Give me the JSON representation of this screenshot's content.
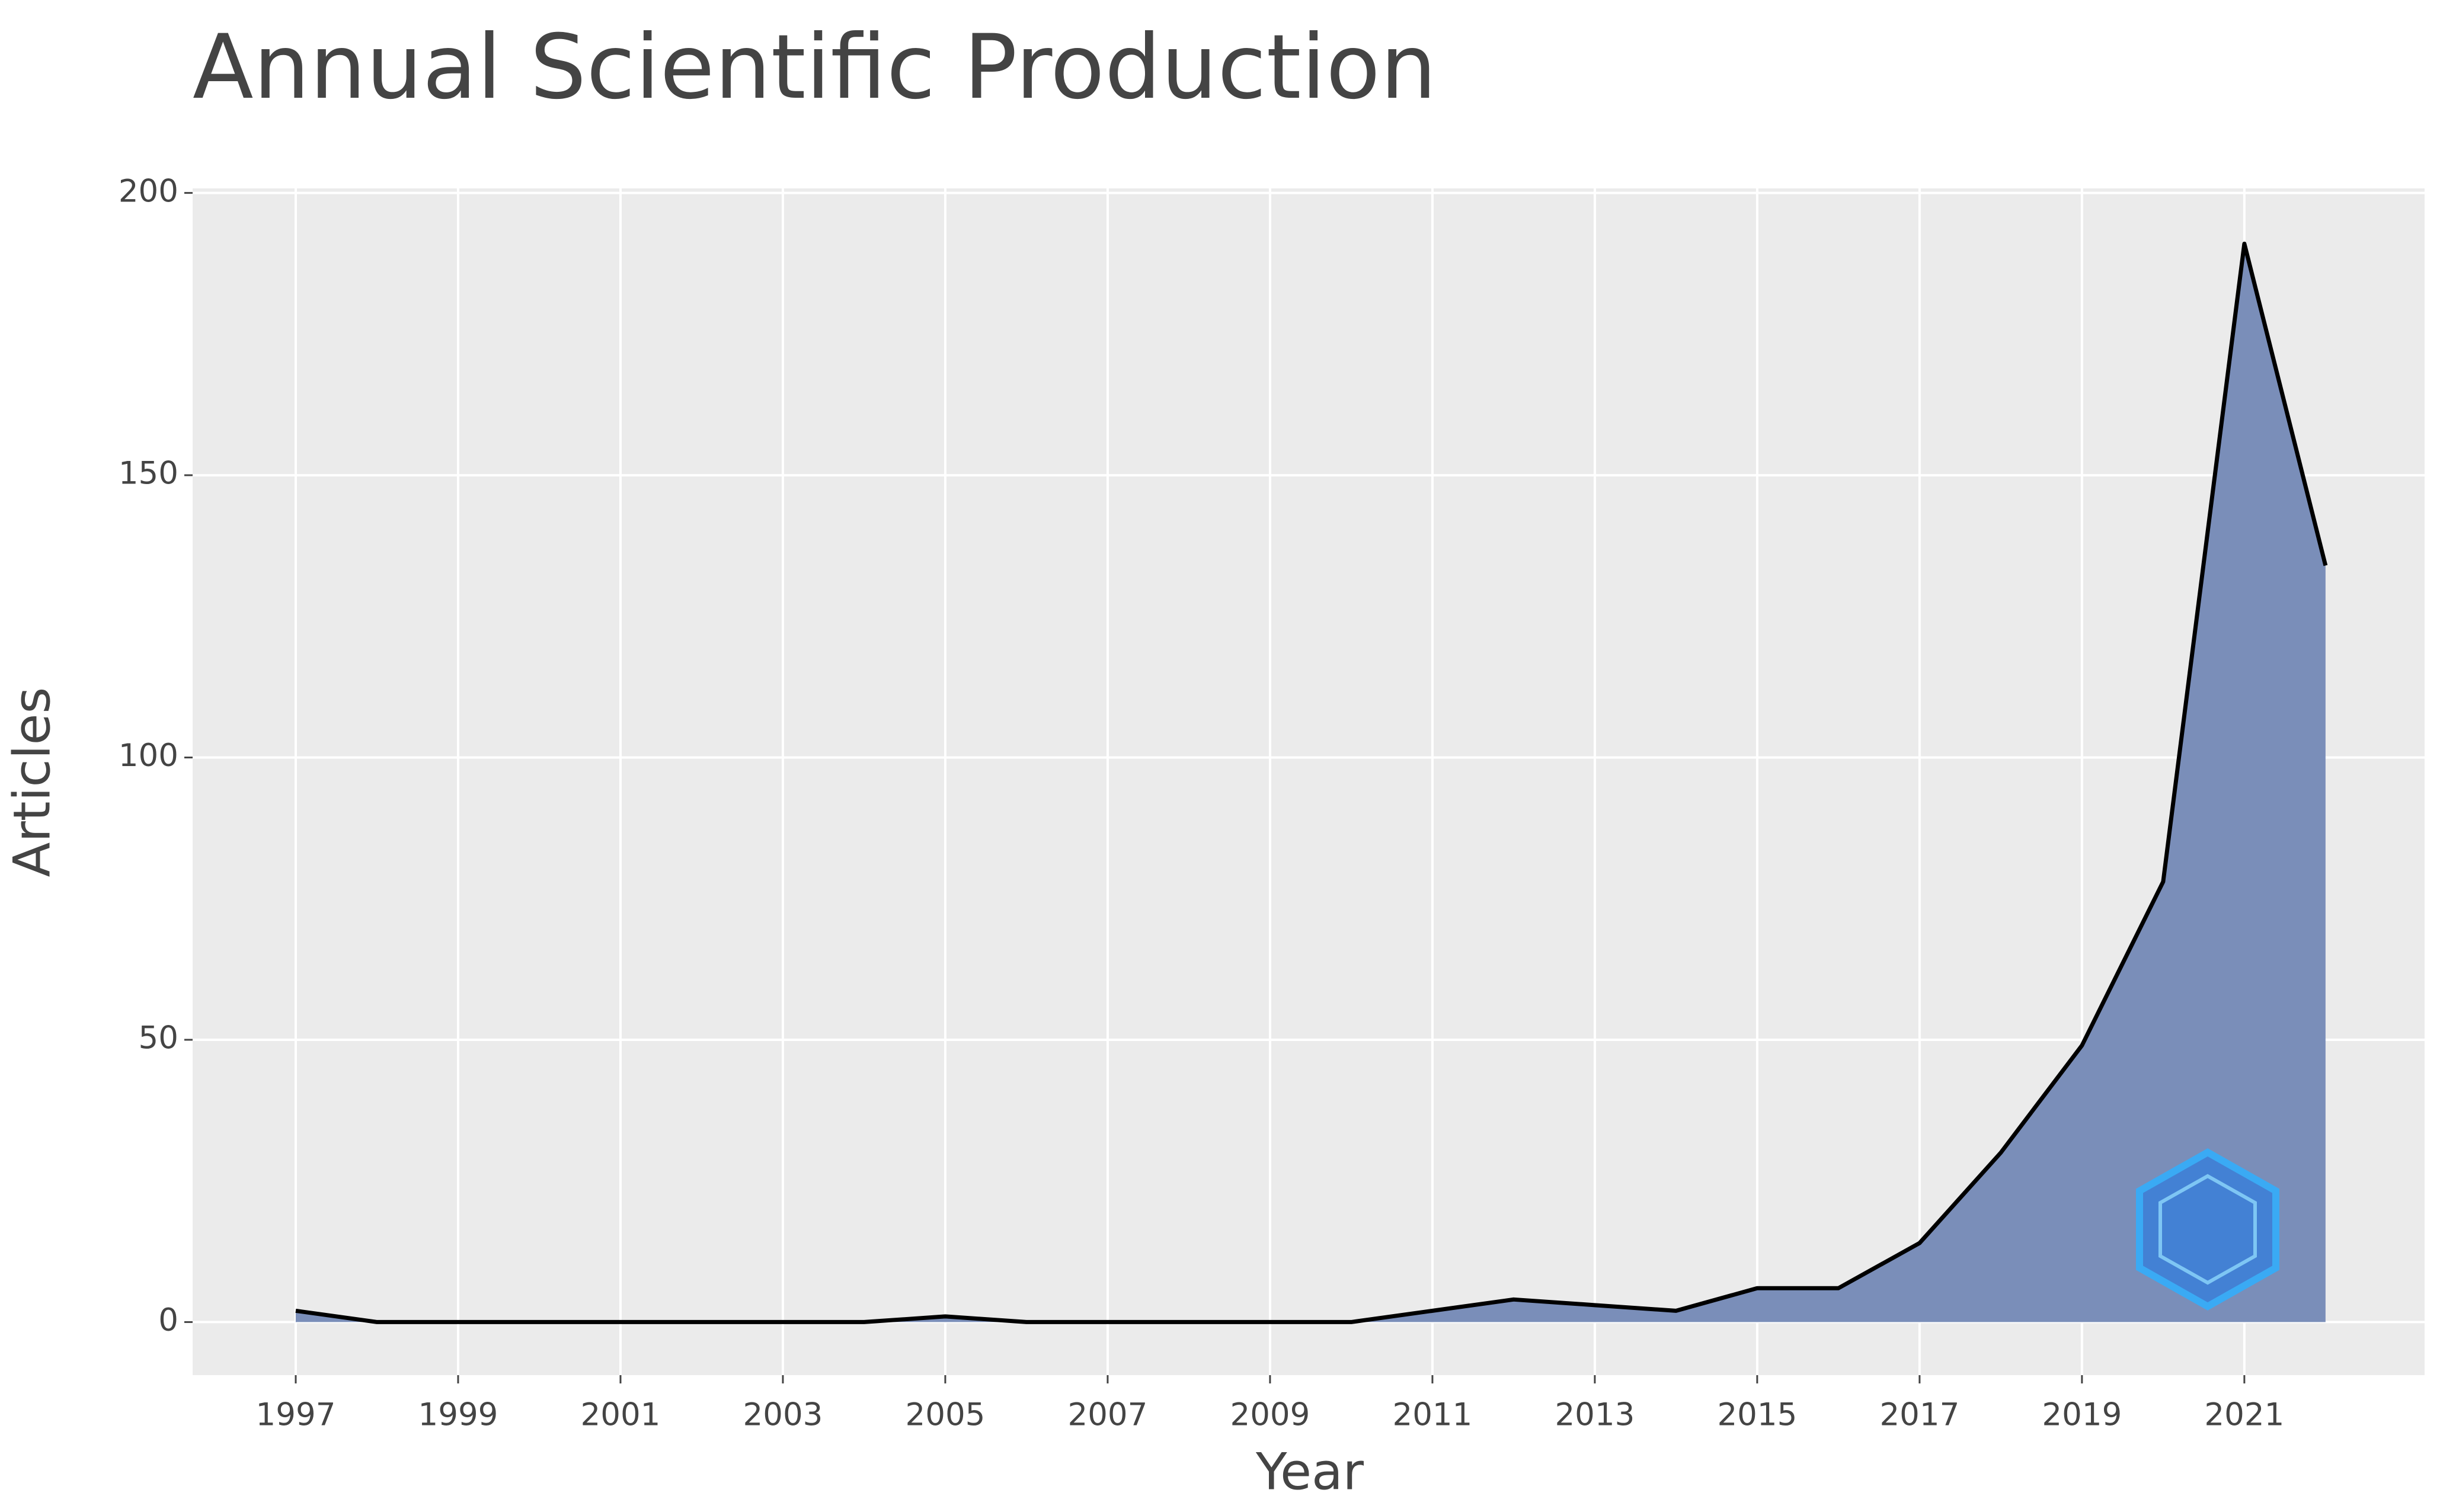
{
  "chart_data": {
    "type": "area",
    "title": "Annual Scientific Production",
    "x_label": "Year",
    "y_label": "Articles",
    "x": [
      1997,
      1998,
      1999,
      2000,
      2001,
      2002,
      2003,
      2004,
      2005,
      2006,
      2007,
      2008,
      2009,
      2010,
      2011,
      2012,
      2013,
      2014,
      2015,
      2016,
      2017,
      2018,
      2019,
      2020,
      2021,
      2022
    ],
    "values": [
      2,
      0,
      0,
      0,
      0,
      0,
      0,
      0,
      1,
      0,
      0,
      0,
      0,
      0,
      2,
      4,
      3,
      2,
      6,
      6,
      14,
      30,
      49,
      78,
      191,
      134
    ],
    "color": "#7a8eb9",
    "line_color": "#000000",
    "xlim": [
      1995.73,
      2023.22
    ],
    "ylim": [
      -9.4,
      200.8
    ],
    "xticks": [
      1997,
      1999,
      2001,
      2003,
      2005,
      2007,
      2009,
      2011,
      2013,
      2015,
      2017,
      2019,
      2021
    ],
    "yticks": [
      0,
      50,
      100,
      150,
      200
    ],
    "grid": true
  }
}
